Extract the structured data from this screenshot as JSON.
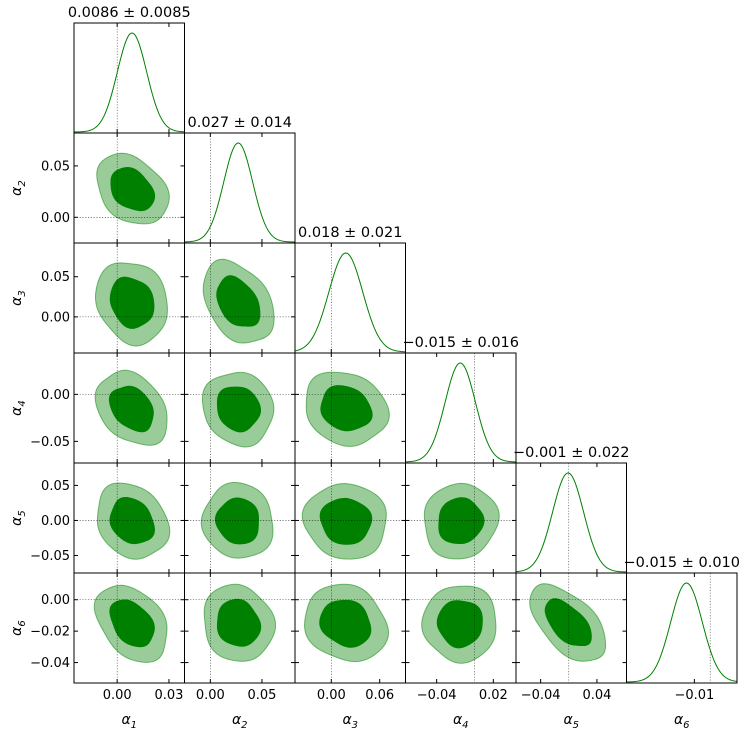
{
  "chart_data": {
    "type": "corner",
    "parameters": [
      {
        "name": "α1",
        "label": "α1",
        "symbol": "α",
        "sub": "1",
        "mean": 0.0086,
        "std": 0.0085,
        "title": "0.0086 ± 0.0085",
        "truth": 0.0,
        "range": [
          -0.025,
          0.039
        ],
        "ticks": [
          0.0,
          0.03
        ],
        "tick_labels": [
          "0.00",
          "0.03"
        ]
      },
      {
        "name": "α2",
        "label": "α2",
        "symbol": "α",
        "sub": "2",
        "mean": 0.027,
        "std": 0.014,
        "title": "0.027 ± 0.014",
        "truth": 0.0,
        "range": [
          -0.025,
          0.082
        ],
        "ticks": [
          0.0,
          0.05
        ],
        "tick_labels": [
          "0.00",
          "0.05"
        ]
      },
      {
        "name": "α3",
        "label": "α3",
        "symbol": "α",
        "sub": "3",
        "mean": 0.018,
        "std": 0.021,
        "title": "0.018 ± 0.021",
        "truth": 0.0,
        "range": [
          -0.045,
          0.092
        ],
        "ticks": [
          0.0,
          0.06
        ],
        "tick_labels": [
          "0.00",
          "0.06"
        ]
      },
      {
        "name": "α4",
        "label": "α4",
        "symbol": "α",
        "sub": "4",
        "mean": -0.015,
        "std": 0.016,
        "title": "−0.015 ± 0.016",
        "truth": 0.0,
        "range": [
          -0.073,
          0.044
        ],
        "ticks": [
          -0.04,
          0.02
        ],
        "tick_labels": [
          "−0.04",
          "0.02"
        ],
        "y_ticks": [
          0.0,
          -0.05
        ],
        "y_tick_labels": [
          "0.00",
          "−0.05"
        ]
      },
      {
        "name": "α5",
        "label": "α5",
        "symbol": "α",
        "sub": "5",
        "mean": -0.001,
        "std": 0.022,
        "title": "−0.001 ± 0.022",
        "truth": 0.0,
        "range": [
          -0.075,
          0.082
        ],
        "ticks": [
          -0.04,
          0.04
        ],
        "tick_labels": [
          "−0.04",
          "0.04"
        ],
        "y_ticks": [
          0.05,
          0.0,
          -0.05
        ],
        "y_tick_labels": [
          "0.05",
          "0.00",
          "−0.05"
        ]
      },
      {
        "name": "α6",
        "label": "α6",
        "symbol": "α",
        "sub": "6",
        "mean": -0.015,
        "std": 0.01,
        "title": "−0.015 ± 0.010",
        "truth": 0.0,
        "range": [
          -0.053,
          0.017
        ],
        "ticks": [
          -0.01
        ],
        "tick_labels": [
          "−0.01"
        ],
        "y_ticks": [
          0.0,
          -0.02,
          -0.04
        ],
        "y_tick_labels": [
          "0.00",
          "−0.02",
          "−0.04"
        ]
      }
    ],
    "y_axis_ticks": {
      "α2": {
        "ticks": [
          0.05,
          0.0
        ],
        "tick_labels": [
          "0.05",
          "0.00"
        ]
      },
      "α3": {
        "ticks": [
          0.05,
          0.0
        ],
        "tick_labels": [
          "0.05",
          "0.00"
        ]
      }
    },
    "correlations": [
      {
        "x": "α1",
        "y": "α2",
        "rho": -0.3
      },
      {
        "x": "α1",
        "y": "α3",
        "rho": -0.15
      },
      {
        "x": "α2",
        "y": "α3",
        "rho": -0.35
      },
      {
        "x": "α1",
        "y": "α4",
        "rho": -0.3
      },
      {
        "x": "α2",
        "y": "α4",
        "rho": -0.1
      },
      {
        "x": "α3",
        "y": "α4",
        "rho": -0.15
      },
      {
        "x": "α1",
        "y": "α5",
        "rho": -0.2
      },
      {
        "x": "α2",
        "y": "α5",
        "rho": -0.05
      },
      {
        "x": "α3",
        "y": "α5",
        "rho": -0.05
      },
      {
        "x": "α4",
        "y": "α5",
        "rho": 0.05
      },
      {
        "x": "α1",
        "y": "α6",
        "rho": -0.35
      },
      {
        "x": "α2",
        "y": "α6",
        "rho": -0.1
      },
      {
        "x": "α3",
        "y": "α6",
        "rho": -0.15
      },
      {
        "x": "α4",
        "y": "α6",
        "rho": 0.0
      },
      {
        "x": "α5",
        "y": "α6",
        "rho": -0.55
      }
    ],
    "contour_levels": [
      "68%",
      "95%"
    ],
    "color": "#008000",
    "grid": false
  }
}
